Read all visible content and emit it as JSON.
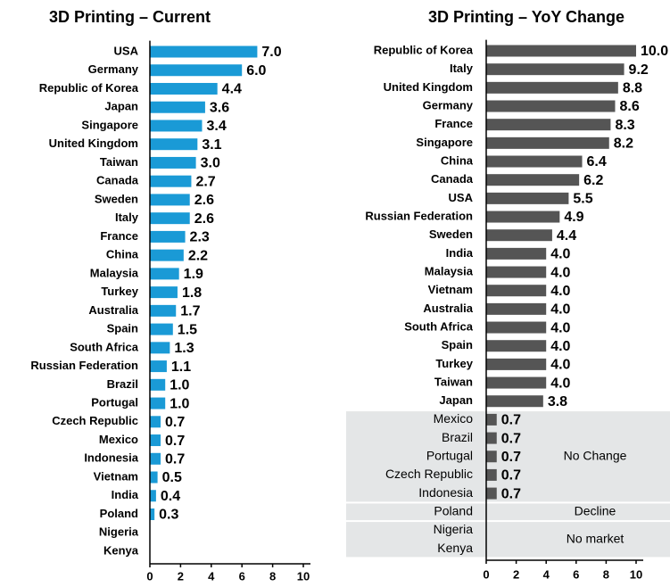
{
  "chart_data": [
    {
      "type": "bar",
      "orientation": "horizontal",
      "title": "3D Printing – Current",
      "color": "#1a9ad6",
      "categories": [
        "USA",
        "Germany",
        "Republic of Korea",
        "Japan",
        "Singapore",
        "United Kingdom",
        "Taiwan",
        "Canada",
        "Sweden",
        "Italy",
        "France",
        "China",
        "Malaysia",
        "Turkey",
        "Australia",
        "Spain",
        "South Africa",
        "Russian Federation",
        "Brazil",
        "Portugal",
        "Czech Republic",
        "Mexico",
        "Indonesia",
        "Vietnam",
        "India",
        "Poland",
        "Nigeria",
        "Kenya"
      ],
      "values": [
        7.0,
        6.0,
        4.4,
        3.6,
        3.4,
        3.1,
        3.0,
        2.7,
        2.6,
        2.6,
        2.3,
        2.2,
        1.9,
        1.8,
        1.7,
        1.5,
        1.3,
        1.1,
        1.0,
        1.0,
        0.7,
        0.7,
        0.7,
        0.5,
        0.4,
        0.3,
        null,
        null
      ],
      "value_labels": [
        "7.0",
        "6.0",
        "4.4",
        "3.6",
        "3.4",
        "3.1",
        "3.0",
        "2.7",
        "2.6",
        "2.6",
        "2.3",
        "2.2",
        "1.9",
        "1.8",
        "1.7",
        "1.5",
        "1.3",
        "1.1",
        "1.0",
        "1.0",
        "0.7",
        "0.7",
        "0.7",
        "0.5",
        "0.4",
        "0.3",
        null,
        null
      ],
      "xlim": [
        0,
        10
      ],
      "xticks": [
        0,
        2,
        4,
        6,
        8,
        10
      ]
    },
    {
      "type": "bar",
      "orientation": "horizontal",
      "title": "3D Printing – YoY Change",
      "color": "#555555",
      "categories": [
        "Republic of Korea",
        "Italy",
        "United Kingdom",
        "Germany",
        "France",
        "Singapore",
        "China",
        "Canada",
        "USA",
        "Russian Federation",
        "Sweden",
        "India",
        "Malaysia",
        "Vietnam",
        "Australia",
        "South Africa",
        "Spain",
        "Turkey",
        "Taiwan",
        "Japan",
        "Mexico",
        "Brazil",
        "Portugal",
        "Czech Republic",
        "Indonesia",
        "Poland",
        "Nigeria",
        "Kenya"
      ],
      "values": [
        10.0,
        9.2,
        8.8,
        8.6,
        8.3,
        8.2,
        6.4,
        6.2,
        5.5,
        4.9,
        4.4,
        4.0,
        4.0,
        4.0,
        4.0,
        4.0,
        4.0,
        4.0,
        4.0,
        3.8,
        0.7,
        0.7,
        0.7,
        0.7,
        0.7,
        null,
        null,
        null
      ],
      "value_labels": [
        "10.0",
        "9.2",
        "8.8",
        "8.6",
        "8.3",
        "8.2",
        "6.4",
        "6.2",
        "5.5",
        "4.9",
        "4.4",
        "4.0",
        "4.0",
        "4.0",
        "4.0",
        "4.0",
        "4.0",
        "4.0",
        "4.0",
        "3.8",
        "0.7",
        "0.7",
        "0.7",
        "0.7",
        "0.7",
        null,
        null,
        null
      ],
      "annotations": [
        "No Change",
        "Decline",
        "No market"
      ],
      "xlim": [
        0,
        10
      ],
      "xticks": [
        0,
        2,
        4,
        6,
        8,
        10
      ]
    }
  ]
}
